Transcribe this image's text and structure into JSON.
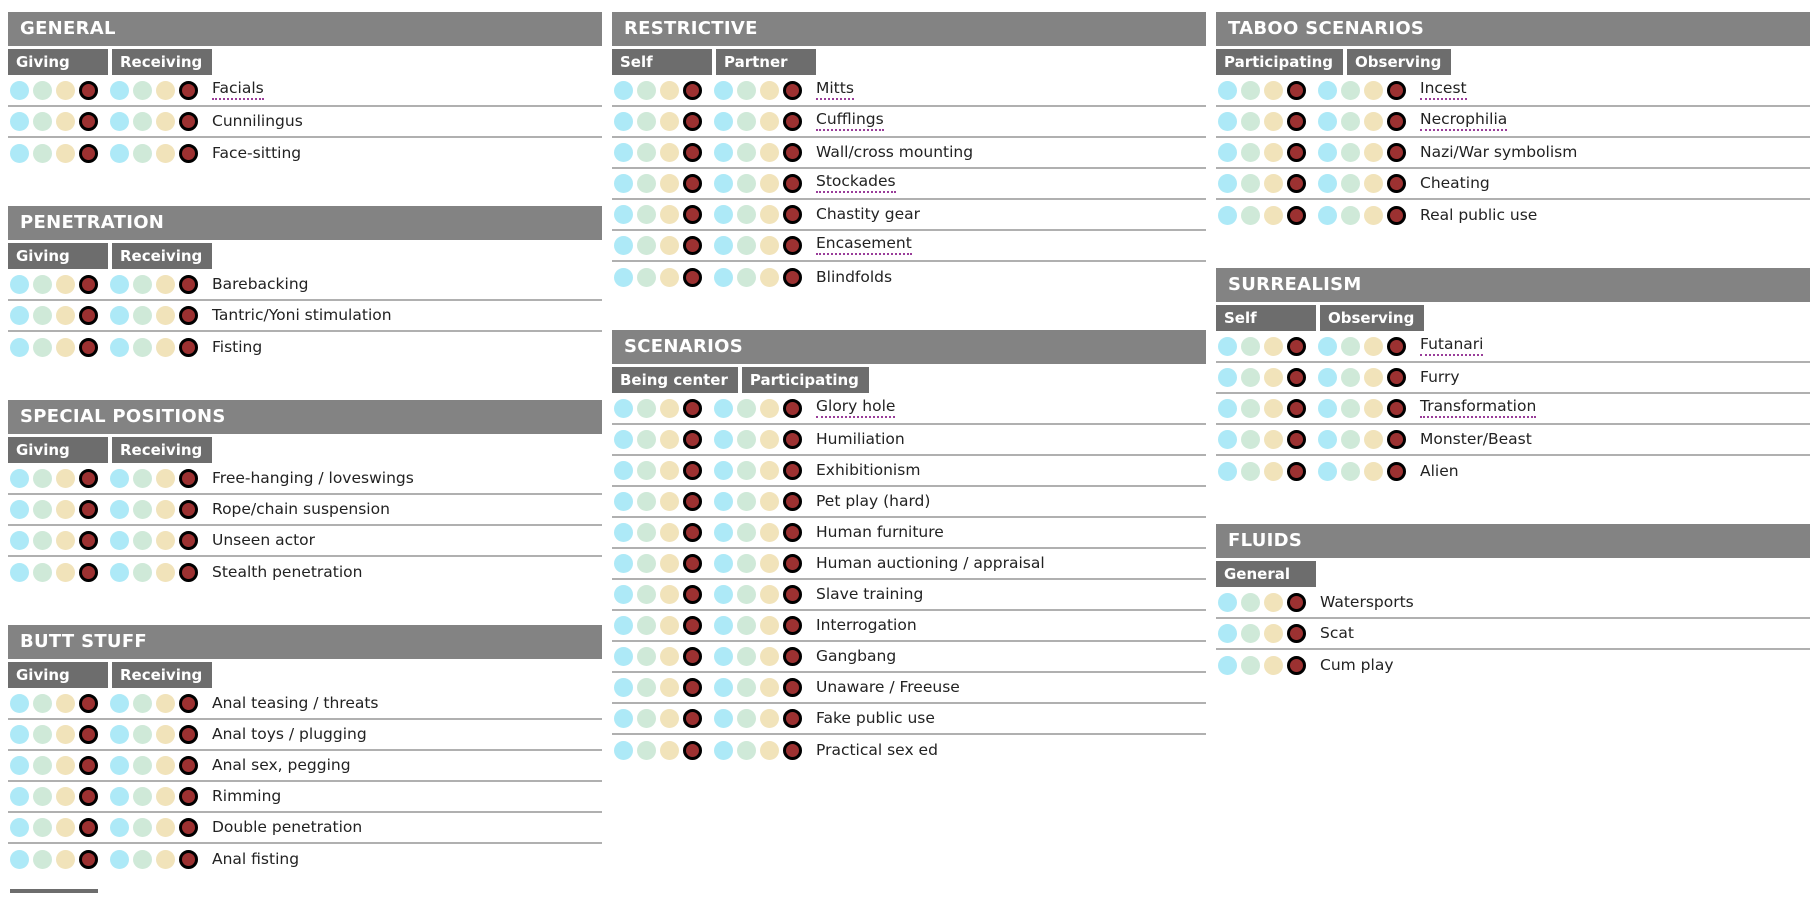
{
  "palette": {
    "section_header_bg": "#838383",
    "column_header_bg": "#6d6d6d",
    "header_text": "#ffffff",
    "row_divider": "#b0b0b0",
    "tooltip_underline": "#993d99",
    "rating_colors": [
      "#ade9f7",
      "#cfe9d8",
      "#f1e3ba",
      "#9c3131"
    ],
    "selected_ring": "#000000"
  },
  "rating_dot_names": [
    "cyan",
    "green",
    "yellow",
    "red"
  ],
  "columns": [
    {
      "sections": [
        {
          "title": "GENERAL",
          "col_headers": [
            "Giving",
            "Receiving"
          ],
          "items": [
            {
              "label": "Facials",
              "underlined": true,
              "selected": [
                3,
                3
              ]
            },
            {
              "label": "Cunnilingus",
              "underlined": false,
              "selected": [
                3,
                3
              ]
            },
            {
              "label": "Face-sitting",
              "underlined": false,
              "selected": [
                3,
                3
              ]
            }
          ]
        },
        {
          "title": "PENETRATION",
          "col_headers": [
            "Giving",
            "Receiving"
          ],
          "items": [
            {
              "label": "Barebacking",
              "underlined": false,
              "selected": [
                3,
                3
              ]
            },
            {
              "label": "Tantric/Yoni stimulation",
              "underlined": false,
              "selected": [
                3,
                3
              ]
            },
            {
              "label": "Fisting",
              "underlined": false,
              "selected": [
                3,
                3
              ]
            }
          ]
        },
        {
          "title": "SPECIAL POSITIONS",
          "col_headers": [
            "Giving",
            "Receiving"
          ],
          "items": [
            {
              "label": "Free-hanging / loveswings",
              "underlined": false,
              "selected": [
                3,
                3
              ]
            },
            {
              "label": "Rope/chain suspension",
              "underlined": false,
              "selected": [
                3,
                3
              ]
            },
            {
              "label": "Unseen actor",
              "underlined": false,
              "selected": [
                3,
                3
              ]
            },
            {
              "label": "Stealth penetration",
              "underlined": false,
              "selected": [
                3,
                3
              ]
            }
          ]
        },
        {
          "title": "BUTT STUFF",
          "col_headers": [
            "Giving",
            "Receiving"
          ],
          "items": [
            {
              "label": "Anal teasing / threats",
              "underlined": false,
              "selected": [
                3,
                3
              ]
            },
            {
              "label": "Anal toys / plugging",
              "underlined": false,
              "selected": [
                3,
                3
              ]
            },
            {
              "label": "Anal sex, pegging",
              "underlined": false,
              "selected": [
                3,
                3
              ]
            },
            {
              "label": "Rimming",
              "underlined": false,
              "selected": [
                3,
                3
              ]
            },
            {
              "label": "Double penetration",
              "underlined": false,
              "selected": [
                3,
                3
              ]
            },
            {
              "label": "Anal fisting",
              "underlined": false,
              "selected": [
                3,
                3
              ]
            }
          ]
        }
      ]
    },
    {
      "sections": [
        {
          "title": "RESTRICTIVE",
          "col_headers": [
            "Self",
            "Partner"
          ],
          "items": [
            {
              "label": "Mitts",
              "underlined": true,
              "selected": [
                3,
                3
              ]
            },
            {
              "label": "Cufflings",
              "underlined": true,
              "selected": [
                3,
                3
              ]
            },
            {
              "label": "Wall/cross mounting",
              "underlined": false,
              "selected": [
                3,
                3
              ]
            },
            {
              "label": "Stockades",
              "underlined": true,
              "selected": [
                3,
                3
              ]
            },
            {
              "label": "Chastity gear",
              "underlined": false,
              "selected": [
                3,
                3
              ]
            },
            {
              "label": "Encasement",
              "underlined": true,
              "selected": [
                3,
                3
              ]
            },
            {
              "label": "Blindfolds",
              "underlined": false,
              "selected": [
                3,
                3
              ]
            }
          ]
        },
        {
          "title": "SCENARIOS",
          "col_headers": [
            "Being center",
            "Participating"
          ],
          "items": [
            {
              "label": "Glory hole",
              "underlined": true,
              "selected": [
                3,
                3
              ]
            },
            {
              "label": "Humiliation",
              "underlined": false,
              "selected": [
                3,
                3
              ]
            },
            {
              "label": "Exhibitionism",
              "underlined": false,
              "selected": [
                3,
                3
              ]
            },
            {
              "label": "Pet play (hard)",
              "underlined": false,
              "selected": [
                3,
                3
              ]
            },
            {
              "label": "Human furniture",
              "underlined": false,
              "selected": [
                3,
                3
              ]
            },
            {
              "label": "Human auctioning / appraisal",
              "underlined": false,
              "selected": [
                3,
                3
              ]
            },
            {
              "label": "Slave training",
              "underlined": false,
              "selected": [
                3,
                3
              ]
            },
            {
              "label": "Interrogation",
              "underlined": false,
              "selected": [
                3,
                3
              ]
            },
            {
              "label": "Gangbang",
              "underlined": false,
              "selected": [
                3,
                3
              ]
            },
            {
              "label": "Unaware / Freeuse",
              "underlined": false,
              "selected": [
                3,
                3
              ]
            },
            {
              "label": "Fake public use",
              "underlined": false,
              "selected": [
                3,
                3
              ]
            },
            {
              "label": "Practical sex ed",
              "underlined": false,
              "selected": [
                3,
                3
              ]
            }
          ]
        }
      ]
    },
    {
      "sections": [
        {
          "title": "TABOO SCENARIOS",
          "col_headers": [
            "Participating",
            "Observing"
          ],
          "items": [
            {
              "label": "Incest",
              "underlined": true,
              "selected": [
                3,
                3
              ]
            },
            {
              "label": "Necrophilia",
              "underlined": true,
              "selected": [
                3,
                3
              ]
            },
            {
              "label": "Nazi/War symbolism",
              "underlined": false,
              "selected": [
                3,
                3
              ]
            },
            {
              "label": "Cheating",
              "underlined": false,
              "selected": [
                3,
                3
              ]
            },
            {
              "label": "Real public use",
              "underlined": false,
              "selected": [
                3,
                3
              ]
            }
          ]
        },
        {
          "title": "SURREALISM",
          "col_headers": [
            "Self",
            "Observing"
          ],
          "items": [
            {
              "label": "Futanari",
              "underlined": true,
              "selected": [
                3,
                3
              ]
            },
            {
              "label": "Furry",
              "underlined": false,
              "selected": [
                3,
                3
              ]
            },
            {
              "label": "Transformation",
              "underlined": true,
              "selected": [
                3,
                3
              ]
            },
            {
              "label": "Monster/Beast",
              "underlined": false,
              "selected": [
                3,
                3
              ]
            },
            {
              "label": "Alien",
              "underlined": false,
              "selected": [
                3,
                3
              ]
            }
          ]
        },
        {
          "title": "FLUIDS",
          "col_headers": [
            "General"
          ],
          "items": [
            {
              "label": "Watersports",
              "underlined": false,
              "selected": [
                3
              ]
            },
            {
              "label": "Scat",
              "underlined": false,
              "selected": [
                3
              ]
            },
            {
              "label": "Cum play",
              "underlined": false,
              "selected": [
                3
              ]
            }
          ]
        }
      ]
    }
  ]
}
